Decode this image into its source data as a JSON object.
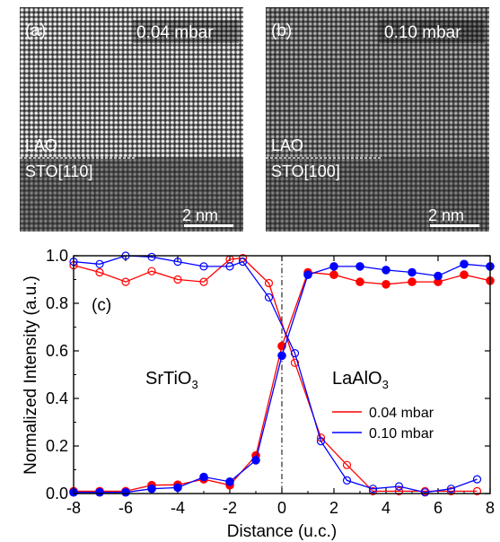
{
  "panels": [
    {
      "tag": "(a)",
      "pressure": "0.04 mbar",
      "layer_top": "LAO",
      "layer_bottom": "STO[110]",
      "scale_bar": "2 nm",
      "lattice_spacing_ratio": 0.021
    },
    {
      "tag": "(b)",
      "pressure": "0.10 mbar",
      "layer_top": "LAO",
      "layer_bottom": "STO[100]",
      "scale_bar": "2 nm",
      "lattice_spacing_ratio": 0.021
    }
  ],
  "plot": {
    "tag": "(c)",
    "left_region": {
      "base": "SrTiO",
      "sub": "3"
    },
    "right_region": {
      "base": "LaAlO",
      "sub": "3"
    }
  },
  "chart_data": {
    "type": "line",
    "xlabel": "Distance (u.c.)",
    "ylabel": "Normalized Intensity (a.u.)",
    "xlim": [
      -8,
      8
    ],
    "ylim": [
      0,
      1.0
    ],
    "xticks": [
      "-8",
      "-6",
      "-4",
      "-2",
      "0",
      "2",
      "4",
      "6",
      "8"
    ],
    "yticks": [
      "0.0",
      "0.2",
      "0.4",
      "0.6",
      "0.8",
      "1.0"
    ],
    "interface_x": 0,
    "legend_position": "lower-right",
    "series": [
      {
        "name": "0.04 mbar",
        "color": "#ff0000",
        "marker": "filled",
        "x": [
          -8,
          -7,
          -6,
          -5,
          -4,
          -3,
          -2,
          -1,
          0,
          1,
          2,
          3,
          4,
          5,
          6,
          7,
          8
        ],
        "y": [
          0.01,
          0.01,
          0.01,
          0.035,
          0.037,
          0.06,
          0.035,
          0.16,
          0.62,
          0.93,
          0.92,
          0.89,
          0.88,
          0.89,
          0.89,
          0.92,
          0.895
        ]
      },
      {
        "name": "0.04 mbar",
        "color": "#ff0000",
        "marker": "open",
        "x": [
          -8,
          -7,
          -6,
          -5,
          -4,
          -3,
          -2,
          -1.5,
          -0.5,
          0.5,
          1.5,
          2.5,
          3.5,
          4.5,
          5.5,
          6.5,
          7.5
        ],
        "y": [
          0.96,
          0.93,
          0.89,
          0.935,
          0.9,
          0.89,
          0.985,
          0.99,
          0.885,
          0.55,
          0.235,
          0.12,
          0.01,
          0.01,
          0.01,
          0.01,
          0.01
        ]
      },
      {
        "name": "0.10 mbar",
        "color": "#0000ff",
        "marker": "filled",
        "x": [
          -8,
          -7,
          -6,
          -5,
          -4,
          -3,
          -2,
          -1,
          0,
          1,
          2,
          3,
          4,
          5,
          6,
          7,
          8
        ],
        "y": [
          0.005,
          0.005,
          0.005,
          0.02,
          0.025,
          0.07,
          0.05,
          0.14,
          0.58,
          0.92,
          0.955,
          0.955,
          0.94,
          0.93,
          0.915,
          0.965,
          0.955
        ]
      },
      {
        "name": "0.10 mbar",
        "color": "#0000ff",
        "marker": "open",
        "x": [
          -8,
          -7,
          -6,
          -5,
          -4,
          -3,
          -2,
          -1.5,
          -0.5,
          0.5,
          1.5,
          2.5,
          3.5,
          4.5,
          5.5,
          6.5,
          7.5
        ],
        "y": [
          0.975,
          0.965,
          1.0,
          0.995,
          0.975,
          0.955,
          0.955,
          0.975,
          0.825,
          0.59,
          0.22,
          0.055,
          0.02,
          0.03,
          0.005,
          0.02,
          0.06
        ]
      }
    ]
  }
}
